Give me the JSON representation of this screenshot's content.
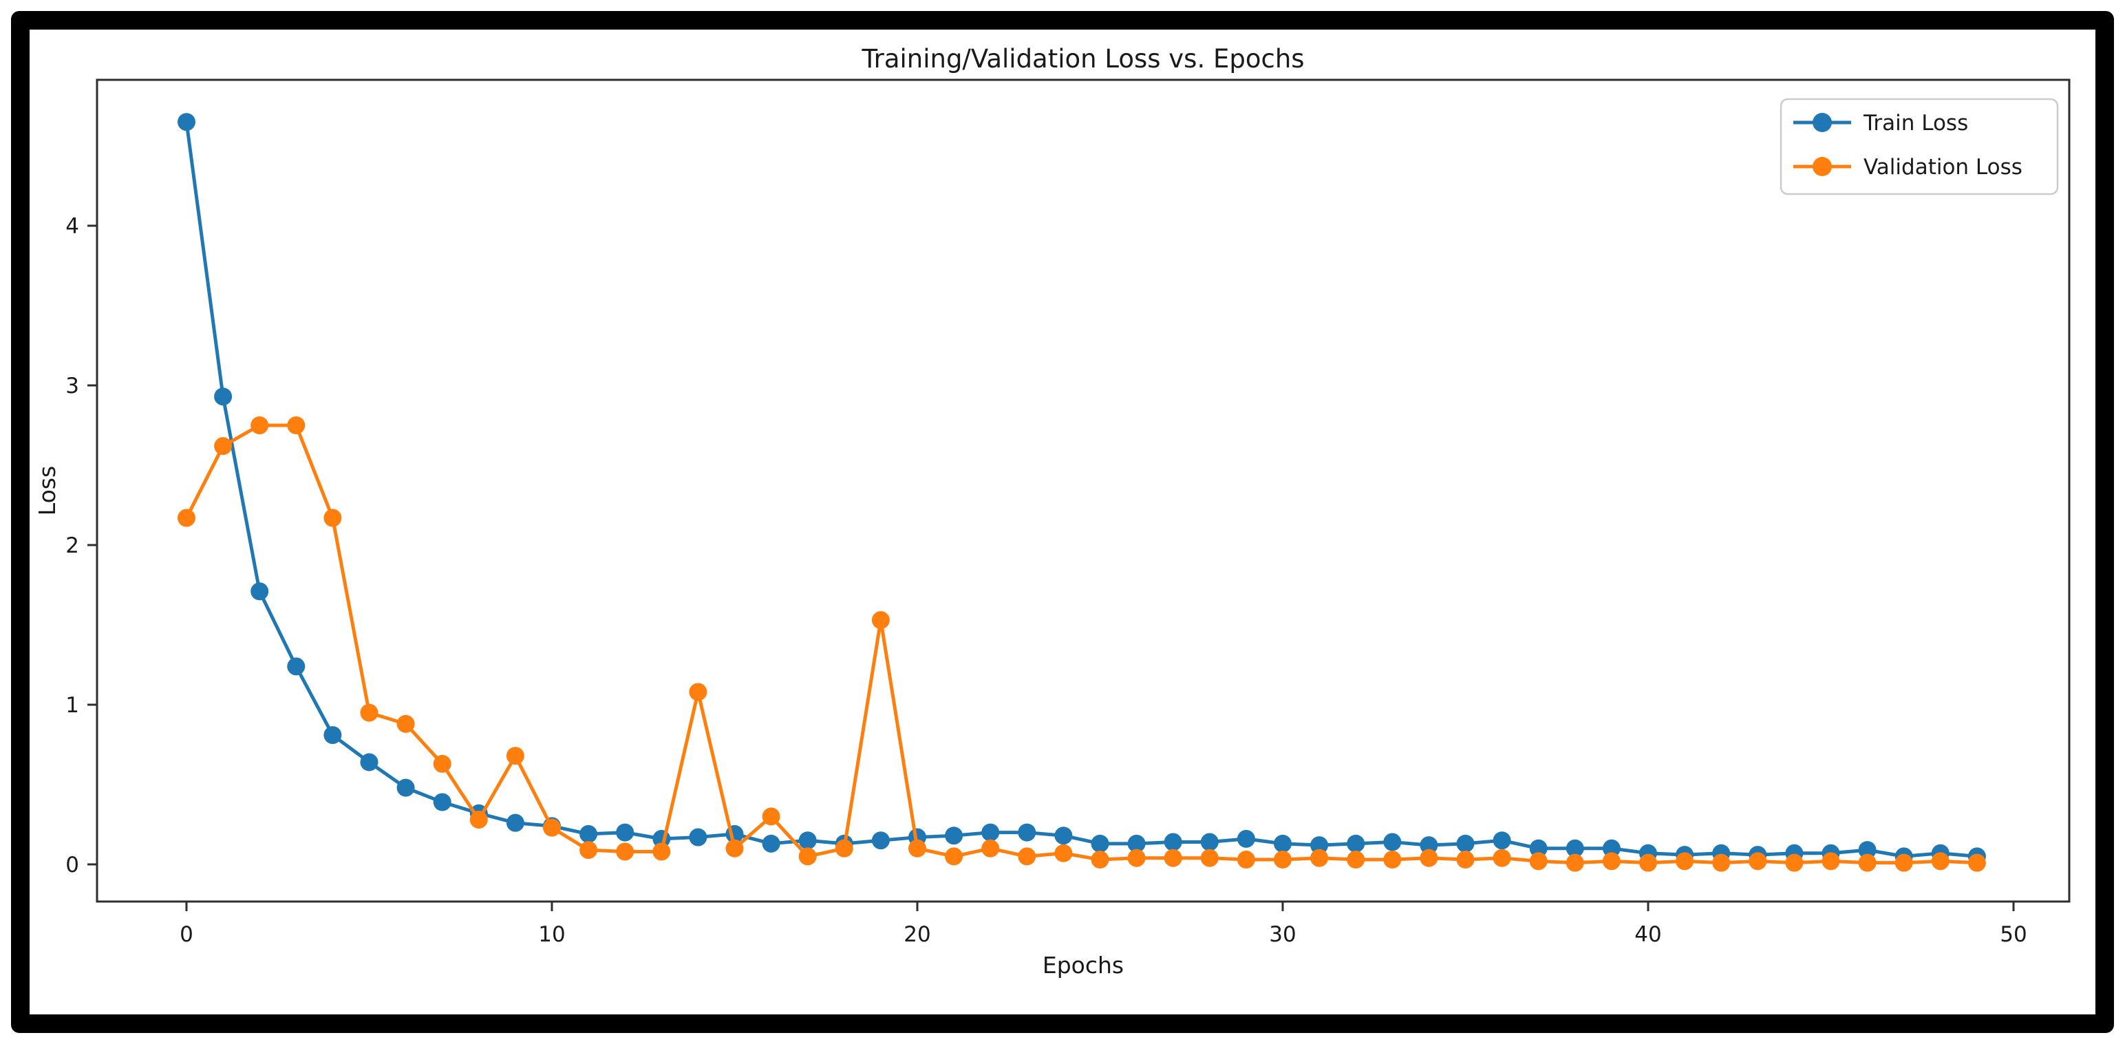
{
  "figure": {
    "title": "Training/Validation Loss vs. Epochs",
    "xlabel": "Epochs",
    "ylabel": "Loss"
  },
  "legend": {
    "position": "upper right",
    "items": [
      {
        "label": "Train Loss",
        "color": "#1f77b4"
      },
      {
        "label": "Validation Loss",
        "color": "#ff7f0e"
      }
    ]
  },
  "colors": {
    "train": "#1f77b4",
    "validation": "#ff7f0e",
    "spine": "#2e2e2e",
    "text": "#1a1a1a",
    "legend_border": "#cccccc",
    "outer_frame": "#000000",
    "background": "#ffffff"
  },
  "chart_data": {
    "type": "line",
    "title": "Training/Validation Loss vs. Epochs",
    "xlabel": "Epochs",
    "ylabel": "Loss",
    "xticks": [
      0,
      10,
      20,
      30,
      40,
      50
    ],
    "yticks": [
      0,
      1,
      2,
      3,
      4
    ],
    "xlim": [
      -2.5,
      51.5
    ],
    "ylim": [
      -0.23,
      4.92
    ],
    "grid": false,
    "legend_position": "upper right",
    "marker": "o",
    "x": [
      0,
      1,
      2,
      3,
      4,
      5,
      6,
      7,
      8,
      9,
      10,
      11,
      12,
      13,
      14,
      15,
      16,
      17,
      18,
      19,
      20,
      21,
      22,
      23,
      24,
      25,
      26,
      27,
      28,
      29,
      30,
      31,
      32,
      33,
      34,
      35,
      36,
      37,
      38,
      39,
      40,
      41,
      42,
      43,
      44,
      45,
      46,
      47,
      48,
      49
    ],
    "series": [
      {
        "name": "Train Loss",
        "color": "#1f77b4",
        "values": [
          4.65,
          2.93,
          1.71,
          1.24,
          0.81,
          0.64,
          0.48,
          0.39,
          0.32,
          0.26,
          0.24,
          0.19,
          0.2,
          0.16,
          0.17,
          0.19,
          0.13,
          0.15,
          0.13,
          0.15,
          0.17,
          0.18,
          0.2,
          0.2,
          0.18,
          0.13,
          0.13,
          0.14,
          0.14,
          0.16,
          0.13,
          0.12,
          0.13,
          0.14,
          0.12,
          0.13,
          0.15,
          0.1,
          0.1,
          0.1,
          0.07,
          0.06,
          0.07,
          0.06,
          0.07,
          0.07,
          0.09,
          0.05,
          0.07,
          0.05
        ]
      },
      {
        "name": "Validation Loss",
        "color": "#ff7f0e",
        "values": [
          2.17,
          2.62,
          2.75,
          2.75,
          2.17,
          0.95,
          0.88,
          0.63,
          0.28,
          0.68,
          0.23,
          0.09,
          0.08,
          0.08,
          1.08,
          0.1,
          0.3,
          0.05,
          0.1,
          1.53,
          0.1,
          0.05,
          0.1,
          0.05,
          0.07,
          0.03,
          0.04,
          0.04,
          0.04,
          0.03,
          0.03,
          0.04,
          0.03,
          0.03,
          0.04,
          0.03,
          0.04,
          0.02,
          0.01,
          0.02,
          0.01,
          0.02,
          0.01,
          0.02,
          0.01,
          0.02,
          0.01,
          0.01,
          0.02,
          0.01
        ]
      }
    ]
  }
}
